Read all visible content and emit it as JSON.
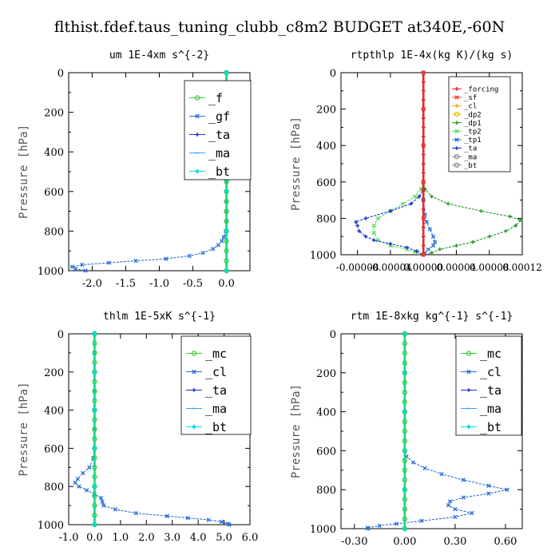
{
  "title": "flthist.fdef.taus_tuning_clubb_c8m2  BUDGET at340E,-60N",
  "chart_data": [
    {
      "type": "line",
      "title": "um  1E-4xm s^{-2}",
      "ylabel": "Pressure [hPa]",
      "xlim": [
        -2.35,
        0.35
      ],
      "ylim": [
        1000,
        0
      ],
      "xticks": [
        -2.0,
        -1.5,
        -1.0,
        -0.5,
        0.0
      ],
      "xtick_labels": [
        "-2.0",
        "-1.5",
        "-1.0",
        "-0.5",
        "0.0"
      ],
      "yticks": [
        0,
        200,
        400,
        600,
        800,
        1000
      ],
      "ytick_labels": [
        "0",
        "200",
        "400",
        "600",
        "800",
        "1000"
      ],
      "legend": {
        "position": "top-right",
        "entries": [
          "_f",
          "_gf",
          "_ta",
          "_ma",
          "_bt"
        ]
      },
      "series": [
        {
          "name": "_gf",
          "color": "#2a6fd6",
          "marker": "x",
          "y": [
            0,
            50,
            100,
            150,
            200,
            250,
            300,
            350,
            400,
            450,
            500,
            550,
            600,
            650,
            700,
            750,
            800,
            830,
            850,
            870,
            890,
            910,
            925,
            940,
            950,
            960,
            970,
            980,
            990,
            1000
          ],
          "x": [
            0,
            0,
            0,
            0,
            0,
            0,
            0,
            0,
            0,
            0,
            0,
            0,
            0,
            0,
            0,
            0,
            -0.01,
            -0.04,
            -0.07,
            -0.12,
            -0.2,
            -0.35,
            -0.55,
            -0.9,
            -1.35,
            -1.75,
            -2.15,
            -2.3,
            -2.25,
            -2.1
          ]
        },
        {
          "name": "_ta",
          "color": "#1a2fd0",
          "marker": "+",
          "y": [
            0,
            200,
            400,
            600,
            800,
            1000
          ],
          "x": [
            0,
            0,
            0,
            0,
            0,
            0
          ]
        },
        {
          "name": "_ma",
          "color": "#3aa0ff",
          "marker": "-",
          "y": [
            0,
            200,
            400,
            600,
            800,
            1000
          ],
          "x": [
            0,
            0,
            0,
            0,
            0,
            0
          ]
        },
        {
          "name": "_f",
          "color": "#33cc33",
          "marker": "o",
          "y": [
            0,
            50,
            100,
            150,
            200,
            250,
            300,
            350,
            400,
            450,
            500,
            550,
            600,
            650,
            700,
            750,
            800,
            850,
            900,
            950,
            1000
          ],
          "x": [
            0,
            0,
            0,
            0,
            0,
            0,
            0,
            0,
            0,
            0,
            0,
            0,
            0,
            0,
            0,
            0,
            0,
            0,
            0,
            0,
            0
          ]
        },
        {
          "name": "_bt",
          "color": "#00e0e0",
          "marker": "diamond",
          "y": [
            0,
            200,
            400,
            600,
            800,
            1000
          ],
          "x": [
            0,
            0,
            0,
            0,
            0,
            0
          ]
        }
      ]
    },
    {
      "type": "line",
      "title": "rtpthlp  1E-4x(kg K)/(kg s)",
      "ylabel": "Pressure [hPa]",
      "xlim": [
        -0.0001,
        0.00012
      ],
      "ylim": [
        1000,
        0
      ],
      "xticks": [
        -8e-05,
        -4e-05,
        0.0,
        4e-05,
        8e-05,
        0.00012
      ],
      "xtick_labels": [
        "-0.00008",
        "-0.00004",
        "0.00000",
        "0.00004",
        "0.00008",
        "0.00012"
      ],
      "yticks": [
        0,
        200,
        400,
        600,
        800,
        1000
      ],
      "ytick_labels": [
        "0",
        "200",
        "400",
        "600",
        "800",
        "1000"
      ],
      "legend": {
        "position": "top-right",
        "entries": [
          "_forcing",
          "_sf",
          "_cl",
          "_dp2",
          "_dp1",
          "_tp2",
          "_tp1",
          "_ta",
          "_ma",
          "_bt"
        ]
      },
      "series": [
        {
          "name": "_dp1",
          "color": "#1f9a1f",
          "marker": "+",
          "y": [
            0,
            200,
            400,
            600,
            640,
            680,
            720,
            760,
            790,
            810,
            840,
            870,
            900,
            930,
            950,
            970,
            990,
            1000
          ],
          "x": [
            0,
            0,
            0,
            0,
            2e-06,
            1e-05,
            3e-05,
            7e-05,
            0.000105,
            0.000118,
            0.000112,
            0.0001,
            8e-05,
            6e-05,
            4e-05,
            2e-05,
            1e-05,
            0
          ]
        },
        {
          "name": "_tp2",
          "color": "#55dd55",
          "marker": "x",
          "y": [
            0,
            200,
            400,
            600,
            640,
            680,
            720,
            760,
            800,
            840,
            880,
            920,
            950,
            970,
            985,
            1000
          ],
          "x": [
            0,
            0,
            0,
            0,
            -3e-06,
            -1e-05,
            -2.5e-05,
            -4e-05,
            -5.5e-05,
            -6e-05,
            -6e-05,
            -5.5e-05,
            -4e-05,
            -2e-05,
            -1e-05,
            0
          ]
        },
        {
          "name": "_ta",
          "color": "#1a2fd0",
          "marker": "+",
          "y": [
            0,
            200,
            400,
            600,
            640,
            680,
            720,
            760,
            800,
            820,
            840,
            870,
            900,
            920,
            940,
            960,
            980,
            1000
          ],
          "x": [
            0,
            0,
            0,
            0,
            0,
            -5e-06,
            -1.5e-05,
            -4e-05,
            -7e-05,
            -8.2e-05,
            -8e-05,
            -7.8e-05,
            -7e-05,
            -6e-05,
            -4e-05,
            -2e-05,
            -8e-06,
            0
          ]
        },
        {
          "name": "_tp1",
          "color": "#2a6fd6",
          "marker": "x",
          "y": [
            0,
            200,
            400,
            600,
            700,
            780,
            820,
            860,
            900,
            930,
            950,
            970,
            990,
            1000
          ],
          "x": [
            0,
            0,
            0,
            0,
            0,
            2e-06,
            4e-06,
            8e-06,
            1.2e-05,
            1.4e-05,
            1.2e-05,
            6e-06,
            2e-06,
            0
          ]
        },
        {
          "name": "_forcing",
          "color": "#e01a1a",
          "marker": "+",
          "y": [
            0,
            50,
            100,
            150,
            200,
            250,
            300,
            350,
            400,
            450,
            500,
            550,
            600,
            650,
            700,
            750,
            800,
            850,
            900,
            950,
            1000
          ],
          "x": [
            0,
            0,
            0,
            0,
            0,
            0,
            0,
            0,
            0,
            0,
            0,
            0,
            0,
            0,
            0,
            0,
            0,
            0,
            0,
            0,
            0
          ]
        },
        {
          "name": "_sf",
          "color": "#ff3b3b",
          "marker": "x",
          "y": [
            0,
            200,
            400,
            600,
            800,
            1000
          ],
          "x": [
            0,
            0,
            0,
            0,
            0,
            0
          ]
        }
      ]
    },
    {
      "type": "line",
      "title": "thlm  1E-5xK s^{-1}",
      "ylabel": "Pressure [hPa]",
      "xlim": [
        -1.0,
        6.0
      ],
      "ylim": [
        1000,
        0
      ],
      "xticks": [
        -1.0,
        0.0,
        1.0,
        2.0,
        3.0,
        4.0,
        5.0,
        6.0
      ],
      "xtick_labels": [
        "-1.0",
        "0.0",
        "1.0",
        "2.0",
        "3.0",
        "4.0",
        "5.0",
        "6.0"
      ],
      "yticks": [
        0,
        200,
        400,
        600,
        800,
        1000
      ],
      "ytick_labels": [
        "0",
        "200",
        "400",
        "600",
        "800",
        "1000"
      ],
      "legend": {
        "position": "top-right",
        "entries": [
          "_mc",
          "_cl",
          "_ta",
          "_ma",
          "_bt"
        ]
      },
      "series": [
        {
          "name": "_cl",
          "color": "#2a6fd6",
          "marker": "x",
          "y": [
            0,
            100,
            200,
            300,
            400,
            500,
            600,
            650,
            700,
            730,
            760,
            780,
            800,
            820,
            840,
            860,
            880,
            900,
            920,
            940,
            955,
            965,
            975,
            985,
            995,
            1000
          ],
          "x": [
            0,
            0,
            0,
            0,
            0,
            0,
            0,
            -0.05,
            -0.2,
            -0.45,
            -0.65,
            -0.75,
            -0.6,
            -0.3,
            0.0,
            0.25,
            0.3,
            0.35,
            0.8,
            1.6,
            2.8,
            3.6,
            4.4,
            4.9,
            5.15,
            5.2
          ]
        },
        {
          "name": "_ta",
          "color": "#1a2fd0",
          "marker": "+",
          "y": [
            0,
            200,
            400,
            600,
            800,
            1000
          ],
          "x": [
            0,
            0,
            0,
            0,
            0,
            0
          ]
        },
        {
          "name": "_mc",
          "color": "#33cc33",
          "marker": "o",
          "y": [
            0,
            50,
            100,
            150,
            200,
            250,
            300,
            350,
            400,
            450,
            500,
            550,
            600,
            650,
            700,
            750,
            800,
            850,
            900,
            950,
            1000
          ],
          "x": [
            0,
            0,
            0,
            0,
            0,
            0,
            0,
            0,
            0,
            0,
            0,
            0,
            0,
            0,
            0,
            0,
            0,
            0,
            0,
            0,
            0
          ]
        },
        {
          "name": "_ma",
          "color": "#3aa0ff",
          "marker": "-",
          "y": [
            0,
            200,
            400,
            600,
            800,
            1000
          ],
          "x": [
            0,
            0,
            0,
            0,
            0,
            0
          ]
        },
        {
          "name": "_bt",
          "color": "#00e0e0",
          "marker": "diamond",
          "y": [
            0,
            200,
            400,
            600,
            800,
            1000
          ],
          "x": [
            0,
            0,
            0,
            0,
            0,
            0
          ]
        }
      ]
    },
    {
      "type": "line",
      "title": "rtm  1E-8xkg kg^{-1} s^{-1}",
      "ylabel": "Pressure [hPa]",
      "xlim": [
        -0.38,
        0.7
      ],
      "ylim": [
        1000,
        0
      ],
      "xticks": [
        -0.3,
        0.0,
        0.3,
        0.6
      ],
      "xtick_labels": [
        "-0.30",
        "0.00",
        "0.30",
        "0.60"
      ],
      "yticks": [
        0,
        200,
        400,
        600,
        800,
        1000
      ],
      "ytick_labels": [
        "0",
        "200",
        "400",
        "600",
        "800",
        "1000"
      ],
      "legend": {
        "position": "top-right",
        "entries": [
          "_mc",
          "_cl",
          "_ta",
          "_ma",
          "_bt"
        ]
      },
      "series": [
        {
          "name": "_cl",
          "color": "#2a6fd6",
          "marker": "x",
          "y": [
            0,
            200,
            400,
            600,
            630,
            660,
            690,
            720,
            750,
            780,
            800,
            820,
            840,
            860,
            880,
            900,
            920,
            940,
            960,
            975,
            985,
            995,
            1000
          ],
          "x": [
            0,
            0,
            0,
            0,
            0.01,
            0.05,
            0.12,
            0.22,
            0.35,
            0.5,
            0.61,
            0.5,
            0.35,
            0.27,
            0.26,
            0.3,
            0.4,
            0.3,
            0.1,
            -0.05,
            -0.15,
            -0.22,
            -0.22
          ]
        },
        {
          "name": "_ta",
          "color": "#1a2fd0",
          "marker": "+",
          "y": [
            0,
            200,
            400,
            600,
            800,
            1000
          ],
          "x": [
            0,
            0,
            0,
            0,
            0,
            0
          ]
        },
        {
          "name": "_mc",
          "color": "#33cc33",
          "marker": "o",
          "y": [
            0,
            50,
            100,
            150,
            200,
            250,
            300,
            350,
            400,
            450,
            500,
            550,
            600,
            650,
            700,
            750,
            800,
            850,
            900,
            950,
            1000
          ],
          "x": [
            0,
            0,
            0,
            0,
            0,
            0,
            0,
            0,
            0,
            0,
            0,
            0,
            0,
            0,
            0,
            0,
            0,
            0,
            0,
            0,
            0
          ]
        },
        {
          "name": "_ma",
          "color": "#3aa0ff",
          "marker": "-",
          "y": [
            0,
            200,
            400,
            600,
            800,
            1000
          ],
          "x": [
            0,
            0,
            0,
            0,
            0,
            0
          ]
        },
        {
          "name": "_bt",
          "color": "#00e0e0",
          "marker": "diamond",
          "y": [
            0,
            200,
            400,
            600,
            800,
            1000
          ],
          "x": [
            0,
            0,
            0,
            0,
            0,
            0
          ]
        }
      ]
    }
  ]
}
